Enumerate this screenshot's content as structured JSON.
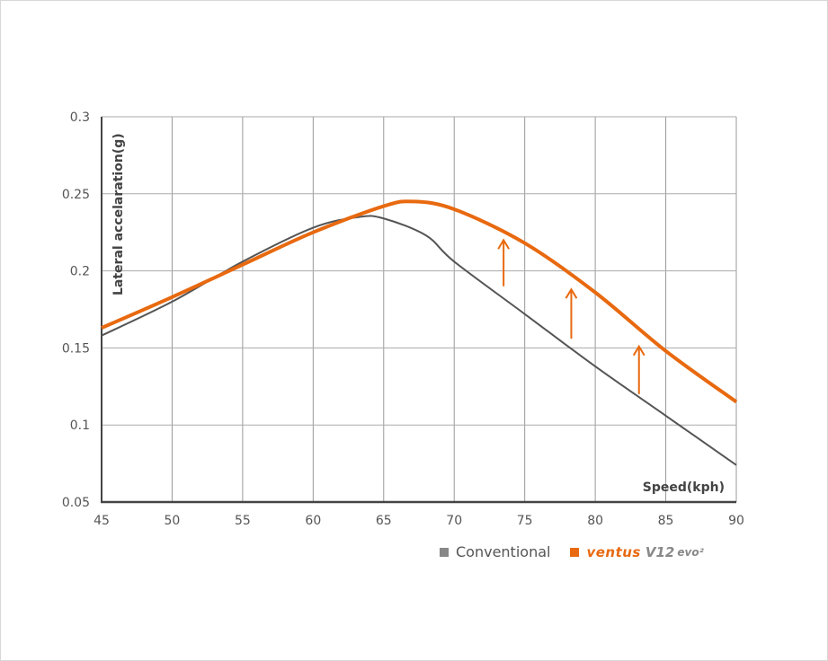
{
  "chart_data": {
    "type": "line",
    "title": "",
    "xlabel": "Speed(kph)",
    "ylabel": "Lateral accelaration(g)",
    "xlim": [
      45,
      90
    ],
    "ylim": [
      0.05,
      0.3
    ],
    "x_ticks": [
      "45",
      "50",
      "55",
      "60",
      "65",
      "70",
      "75",
      "80",
      "85",
      "90"
    ],
    "y_ticks": [
      "0.3",
      "0.25",
      "0.2",
      "0.15",
      "0.1",
      "0.05"
    ],
    "grid": true,
    "legend_position": "bottom-right",
    "series": [
      {
        "name": "Conventional",
        "color": "#555555",
        "x": [
          45,
          50,
          55,
          60,
          63.3,
          65,
          68,
          70,
          75,
          80,
          85,
          90
        ],
        "y": [
          0.158,
          0.18,
          0.206,
          0.228,
          0.235,
          0.234,
          0.223,
          0.206,
          0.172,
          0.138,
          0.106,
          0.074
        ]
      },
      {
        "name": "ventus V12 evo2",
        "color": "#e8690f",
        "x": [
          45,
          50,
          55,
          60,
          65,
          67.1,
          70,
          75,
          80,
          85,
          90
        ],
        "y": [
          0.163,
          0.183,
          0.204,
          0.225,
          0.242,
          0.245,
          0.24,
          0.218,
          0.186,
          0.148,
          0.115
        ]
      }
    ],
    "annotations": [
      {
        "type": "arrow-up",
        "x": 73.5,
        "y_from": 0.19,
        "y_to": 0.22
      },
      {
        "type": "arrow-up",
        "x": 78.3,
        "y_from": 0.156,
        "y_to": 0.188
      },
      {
        "type": "arrow-up",
        "x": 83.1,
        "y_from": 0.12,
        "y_to": 0.151
      }
    ]
  },
  "legend": {
    "conventional": "Conventional",
    "brand_main": "ventus",
    "brand_model": "V12",
    "brand_suffix": "evo²"
  },
  "colors": {
    "accent": "#e8690f",
    "conventional": "#555555",
    "legend_gray": "#888888"
  }
}
